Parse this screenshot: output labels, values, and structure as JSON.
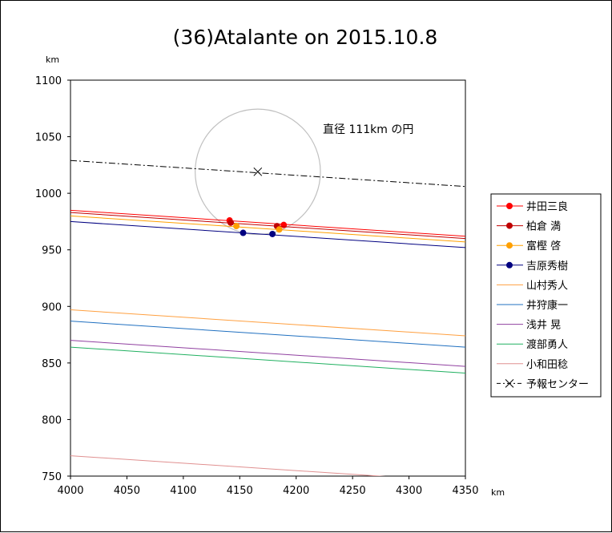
{
  "chart_data": {
    "type": "line",
    "title": "(36)Atalante on 2015.10.8",
    "xlabel": "km",
    "ylabel": "km",
    "xlim": [
      4000,
      4350
    ],
    "ylim": [
      750,
      1100
    ],
    "xticks": [
      4000,
      4050,
      4100,
      4150,
      4200,
      4250,
      4300,
      4350
    ],
    "yticks": [
      750,
      800,
      850,
      900,
      950,
      1000,
      1050,
      1100
    ],
    "grid": false,
    "legend_position": "right",
    "annotation": "直径 111km の円",
    "circle": {
      "center": [
        4166,
        1019
      ],
      "diameter": 111,
      "color": "#c0c0c0"
    },
    "series": [
      {
        "name": "井田三良",
        "color": "#ff0000",
        "marker": "dot",
        "line": [
          [
            4000,
            985
          ],
          [
            4350,
            962
          ]
        ],
        "points": [
          [
            4141,
            976
          ],
          [
            4189,
            972
          ]
        ]
      },
      {
        "name": "柏倉 満",
        "color": "#c00000",
        "marker": "dot",
        "line": [
          [
            4000,
            983
          ],
          [
            4350,
            960
          ]
        ],
        "points": [
          [
            4142,
            974
          ],
          [
            4183,
            971
          ]
        ]
      },
      {
        "name": "富樫 啓",
        "color": "#ffa000",
        "marker": "dot",
        "line": [
          [
            4000,
            980
          ],
          [
            4350,
            957
          ]
        ],
        "points": [
          [
            4147,
            971
          ],
          [
            4185,
            968
          ]
        ]
      },
      {
        "name": "吉原秀樹",
        "color": "#000080",
        "marker": "dot",
        "line": [
          [
            4000,
            975
          ],
          [
            4350,
            952
          ]
        ],
        "points": [
          [
            4153,
            965
          ],
          [
            4179,
            964
          ]
        ]
      },
      {
        "name": "山村秀人",
        "color": "#ffa040",
        "marker": "none",
        "line": [
          [
            4000,
            897
          ],
          [
            4350,
            874
          ]
        ]
      },
      {
        "name": "井狩康一",
        "color": "#2070c0",
        "marker": "none",
        "line": [
          [
            4000,
            887
          ],
          [
            4350,
            864
          ]
        ]
      },
      {
        "name": "浅井 晃",
        "color": "#9040a0",
        "marker": "none",
        "line": [
          [
            4000,
            870
          ],
          [
            4350,
            847
          ]
        ]
      },
      {
        "name": "渡部勇人",
        "color": "#20b060",
        "marker": "none",
        "line": [
          [
            4000,
            864
          ],
          [
            4350,
            841
          ]
        ]
      },
      {
        "name": "小和田稔",
        "color": "#e09090",
        "marker": "none",
        "line": [
          [
            4000,
            768
          ],
          [
            4350,
            745
          ]
        ]
      },
      {
        "name": "予報センター",
        "color": "#000000",
        "marker": "x",
        "dashed": true,
        "line": [
          [
            4000,
            1029
          ],
          [
            4350,
            1006
          ]
        ],
        "points": [
          [
            4166,
            1019
          ]
        ]
      }
    ]
  }
}
